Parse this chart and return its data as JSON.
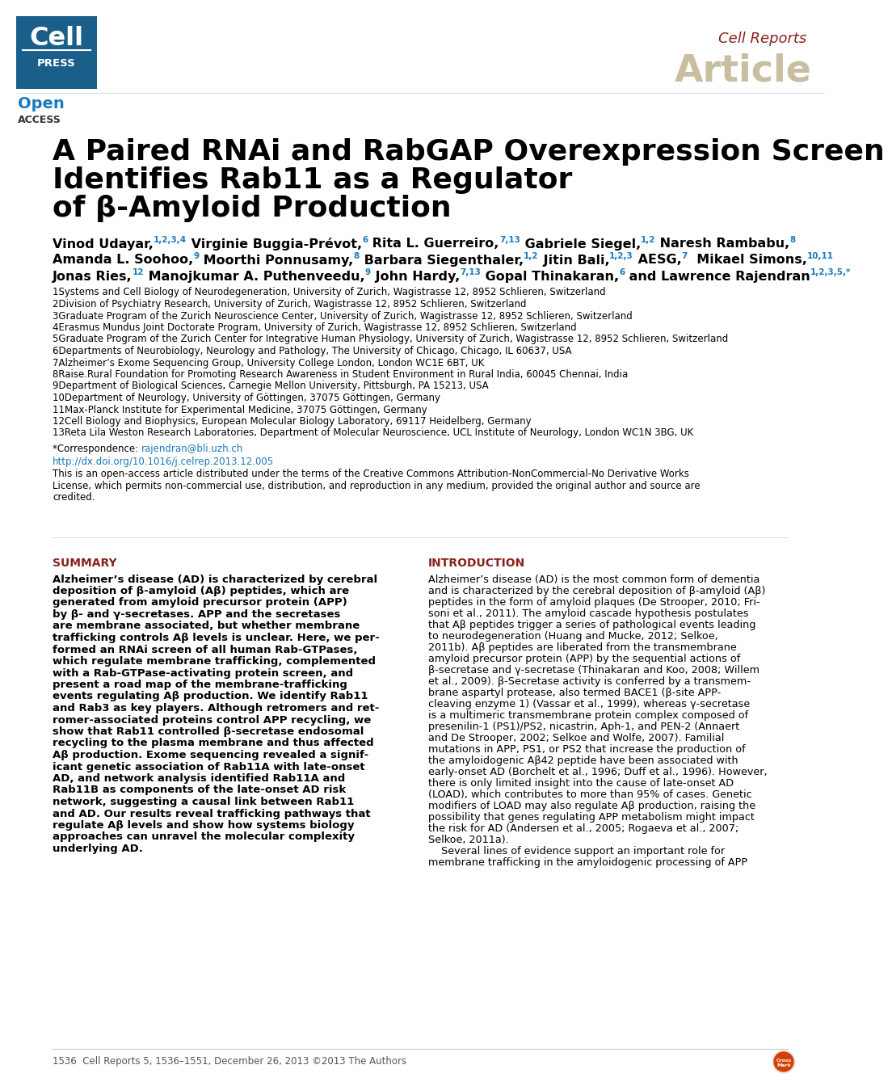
{
  "bg_color": "#ffffff",
  "cell_press_box_color": "#1a5f8a",
  "open_access_color": "#1a7abf",
  "cell_reports_color": "#8b2020",
  "article_color": "#c8bfa0",
  "title_line1": "A Paired RNAi and RabGAP Overexpression Screen",
  "title_line2": "Identifies Rab11 as a Regulator",
  "title_line3": "of β-Amyloid Production",
  "title_color": "#000000",
  "affiliations": [
    "1Systems and Cell Biology of Neurodegeneration, University of Zurich, Wagistrasse 12, 8952 Schlieren, Switzerland",
    "2Division of Psychiatry Research, University of Zurich, Wagistrasse 12, 8952 Schlieren, Switzerland",
    "3Graduate Program of the Zurich Neuroscience Center, University of Zurich, Wagistrasse 12, 8952 Schlieren, Switzerland",
    "4Erasmus Mundus Joint Doctorate Program, University of Zurich, Wagistrasse 12, 8952 Schlieren, Switzerland",
    "5Graduate Program of the Zurich Center for Integrative Human Physiology, University of Zurich, Wagistrasse 12, 8952 Schlieren, Switzerland",
    "6Departments of Neurobiology, Neurology and Pathology, The University of Chicago, Chicago, IL 60637, USA",
    "7Alzheimer’s Exome Sequencing Group, University College London, London WC1E 6BT, UK",
    "8Raise.Rural Foundation for Promoting Research Awareness in Student Environment in Rural India, 60045 Chennai, India",
    "9Department of Biological Sciences, Carnegie Mellon University, Pittsburgh, PA 15213, USA",
    "10Department of Neurology, University of Göttingen, 37075 Göttingen, Germany",
    "11Max-Planck Institute for Experimental Medicine, 37075 Göttingen, Germany",
    "12Cell Biology and Biophysics, European Molecular Biology Laboratory, 69117 Heidelberg, Germany",
    "13Reta Lila Weston Research Laboratories, Department of Molecular Neuroscience, UCL Institute of Neurology, London WC1N 3BG, UK"
  ],
  "doi": "http://dx.doi.org/10.1016/j.celrep.2013.12.005",
  "doi_color": "#1a7abf",
  "open_access_text": "This is an open-access article distributed under the terms of the Creative Commons Attribution-NonCommercial-No Derivative Works\nLicense, which permits non-commercial use, distribution, and reproduction in any medium, provided the original author and source are\ncredited.",
  "summary_header": "SUMMARY",
  "summary_color": "#8b2020",
  "summary_text": "Alzheimer’s disease (AD) is characterized by cerebral\ndeposition of β-amyloid (Aβ) peptides, which are\ngenerated from amyloid precursor protein (APP)\nby β- and γ-secretases. APP and the secretases\nare membrane associated, but whether membrane\ntrafficking controls Aβ levels is unclear. Here, we per-\nformed an RNAi screen of all human Rab-GTPases,\nwhich regulate membrane trafficking, complemented\nwith a Rab-GTPase-activating protein screen, and\npresent a road map of the membrane-trafficking\nevents regulating Aβ production. We identify Rab11\nand Rab3 as key players. Although retromers and ret-\nromer-associated proteins control APP recycling, we\nshow that Rab11 controlled β-secretase endosomal\nrecycling to the plasma membrane and thus affected\nAβ production. Exome sequencing revealed a signif-\nicant genetic association of Rab11A with late-onset\nAD, and network analysis identified Rab11A and\nRab11B as components of the late-onset AD risk\nnetwork, suggesting a causal link between Rab11\nand AD. Our results reveal trafficking pathways that\nregulate Aβ levels and show how systems biology\napproaches can unravel the molecular complexity\nunderlying AD.",
  "intro_header": "INTRODUCTION",
  "intro_text": "Alzheimer’s disease (AD) is the most common form of dementia\nand is characterized by the cerebral deposition of β-amyloid (Aβ)\npeptides in the form of amyloid plaques (De Strooper, 2010; Fri-\nsoni et al., 2011). The amyloid cascade hypothesis postulates\nthat Aβ peptides trigger a series of pathological events leading\nto neurodegeneration (Huang and Mucke, 2012; Selkoe,\n2011b). Aβ peptides are liberated from the transmembrane\namyloid precursor protein (APP) by the sequential actions of\nβ-secretase and γ-secretase (Thinakaran and Koo, 2008; Willem\net al., 2009). β-Secretase activity is conferred by a transmem-\nbrane aspartyl protease, also termed BACE1 (β-site APP-\ncleaving enzyme 1) (Vassar et al., 1999), whereas γ-secretase\nis a multimeric transmembrane protein complex composed of\npresenilin-1 (PS1)/PS2, nicastrin, Aph-1, and PEN-2 (Annaert\nand De Strooper, 2002; Selkoe and Wolfe, 2007). Familial\nmutations in APP, PS1, or PS2 that increase the production of\nthe amyloidogenic Aβ42 peptide have been associated with\nearly-onset AD (Borchelt et al., 1996; Duff et al., 1996). However,\nthere is only limited insight into the cause of late-onset AD\n(LOAD), which contributes to more than 95% of cases. Genetic\nmodifiers of LOAD may also regulate Aβ production, raising the\npossibility that genes regulating APP metabolism might impact\nthe risk for AD (Andersen et al., 2005; Rogaeva et al., 2007;\nSelkoe, 2011a).\n    Several lines of evidence support an important role for\nmembrane trafficking in the amyloidogenic processing of APP",
  "footer_text": "1536  Cell Reports 5, 1536–1551, December 26, 2013 ©2013 The Authors",
  "footer_color": "#555555",
  "author_segments_line1": [
    [
      "Vinod Udayar,",
      "#000000",
      11.5,
      true,
      0
    ],
    [
      "1,2,3,4",
      "#1a7abf",
      7.5,
      true,
      -5
    ],
    [
      " Virginie Buggia-Prévot,",
      "#000000",
      11.5,
      true,
      0
    ],
    [
      "6",
      "#1a7abf",
      7.5,
      true,
      -5
    ],
    [
      " Rita L. Guerreiro,",
      "#000000",
      11.5,
      true,
      0
    ],
    [
      "7,13",
      "#1a7abf",
      7.5,
      true,
      -5
    ],
    [
      " Gabriele Siegel,",
      "#000000",
      11.5,
      true,
      0
    ],
    [
      "1,2",
      "#1a7abf",
      7.5,
      true,
      -5
    ],
    [
      " Naresh Rambabu,",
      "#000000",
      11.5,
      true,
      0
    ],
    [
      "8",
      "#1a7abf",
      7.5,
      true,
      -5
    ]
  ],
  "author_segments_line2": [
    [
      "Amanda L. Soohoo,",
      "#000000",
      11.5,
      true,
      0
    ],
    [
      "9",
      "#1a7abf",
      7.5,
      true,
      -5
    ],
    [
      " Moorthi Ponnusamy,",
      "#000000",
      11.5,
      true,
      0
    ],
    [
      "8",
      "#1a7abf",
      7.5,
      true,
      -5
    ],
    [
      " Barbara Siegenthaler,",
      "#000000",
      11.5,
      true,
      0
    ],
    [
      "1,2",
      "#1a7abf",
      7.5,
      true,
      -5
    ],
    [
      " Jitin Bali,",
      "#000000",
      11.5,
      true,
      0
    ],
    [
      "1,2,3",
      "#1a7abf",
      7.5,
      true,
      -5
    ],
    [
      " AESG,",
      "#000000",
      11.5,
      true,
      0
    ],
    [
      "7",
      "#1a7abf",
      7.5,
      true,
      -5
    ],
    [
      "  Mikael Simons,",
      "#000000",
      11.5,
      true,
      0
    ],
    [
      "10,11",
      "#1a7abf",
      7.5,
      true,
      -5
    ]
  ],
  "author_segments_line3": [
    [
      "Jonas Ries,",
      "#000000",
      11.5,
      true,
      0
    ],
    [
      "12",
      "#1a7abf",
      7.5,
      true,
      -5
    ],
    [
      " Manojkumar A. Puthenveedu,",
      "#000000",
      11.5,
      true,
      0
    ],
    [
      "9",
      "#1a7abf",
      7.5,
      true,
      -5
    ],
    [
      " John Hardy,",
      "#000000",
      11.5,
      true,
      0
    ],
    [
      "7,13",
      "#1a7abf",
      7.5,
      true,
      -5
    ],
    [
      " Gopal Thinakaran,",
      "#000000",
      11.5,
      true,
      0
    ],
    [
      "6",
      "#1a7abf",
      7.5,
      true,
      -5
    ],
    [
      " and Lawrence Rajendran",
      "#000000",
      11.5,
      true,
      0
    ],
    [
      "1,2,3,5,*",
      "#1a7abf",
      7.5,
      true,
      -5
    ]
  ]
}
